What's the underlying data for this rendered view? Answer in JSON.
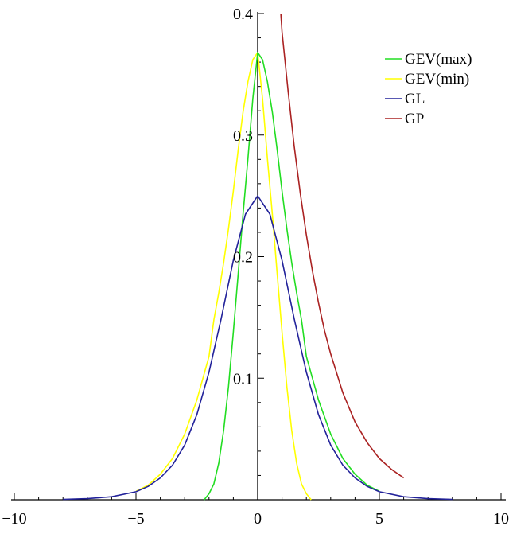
{
  "chart_data": {
    "type": "line",
    "title": "",
    "xlabel": "",
    "ylabel": "",
    "xlim": [
      -10,
      10
    ],
    "ylim": [
      0,
      0.4
    ],
    "x_ticks": [
      -10,
      -5,
      0,
      5,
      10
    ],
    "x_tick_labels": [
      "−10",
      "−5",
      "0",
      "5",
      "10"
    ],
    "y_ticks": [
      0.1,
      0.2,
      0.3,
      0.4
    ],
    "y_tick_labels": [
      "0.1",
      "0.2",
      "0.3",
      "0.4"
    ],
    "grid": false,
    "legend_position": "top-right",
    "series": [
      {
        "name": "GEV(max)",
        "color": "#22dd22",
        "points": [
          [
            -2.2,
            0.0
          ],
          [
            -2.0,
            0.005
          ],
          [
            -1.8,
            0.013
          ],
          [
            -1.6,
            0.03
          ],
          [
            -1.4,
            0.057
          ],
          [
            -1.2,
            0.093
          ],
          [
            -1.0,
            0.138
          ],
          [
            -0.8,
            0.186
          ],
          [
            -0.6,
            0.235
          ],
          [
            -0.4,
            0.281
          ],
          [
            -0.2,
            0.33
          ],
          [
            0.0,
            0.368
          ],
          [
            0.2,
            0.362
          ],
          [
            0.4,
            0.344
          ],
          [
            0.6,
            0.319
          ],
          [
            0.8,
            0.288
          ],
          [
            1.0,
            0.254
          ],
          [
            1.2,
            0.223
          ],
          [
            1.4,
            0.195
          ],
          [
            1.6,
            0.17
          ],
          [
            1.8,
            0.148
          ],
          [
            2.0,
            0.118
          ],
          [
            2.5,
            0.082
          ],
          [
            3.0,
            0.054
          ],
          [
            3.5,
            0.034
          ],
          [
            4.0,
            0.021
          ],
          [
            4.5,
            0.012
          ],
          [
            5.0,
            0.007
          ]
        ]
      },
      {
        "name": "GEV(min)",
        "color": "#ffff00",
        "points": [
          [
            -5.0,
            0.007
          ],
          [
            -4.5,
            0.012
          ],
          [
            -4.0,
            0.021
          ],
          [
            -3.5,
            0.034
          ],
          [
            -3.0,
            0.054
          ],
          [
            -2.5,
            0.082
          ],
          [
            -2.0,
            0.118
          ],
          [
            -1.8,
            0.148
          ],
          [
            -1.6,
            0.17
          ],
          [
            -1.4,
            0.195
          ],
          [
            -1.2,
            0.223
          ],
          [
            -1.0,
            0.254
          ],
          [
            -0.8,
            0.288
          ],
          [
            -0.6,
            0.319
          ],
          [
            -0.4,
            0.344
          ],
          [
            -0.2,
            0.362
          ],
          [
            0.0,
            0.368
          ],
          [
            0.2,
            0.33
          ],
          [
            0.4,
            0.281
          ],
          [
            0.6,
            0.235
          ],
          [
            0.8,
            0.186
          ],
          [
            1.0,
            0.138
          ],
          [
            1.2,
            0.093
          ],
          [
            1.4,
            0.057
          ],
          [
            1.6,
            0.03
          ],
          [
            1.8,
            0.013
          ],
          [
            2.0,
            0.005
          ],
          [
            2.2,
            0.0
          ]
        ]
      },
      {
        "name": "GL",
        "color": "#22229a",
        "points": [
          [
            -8.0,
            0.0003
          ],
          [
            -7.0,
            0.0009
          ],
          [
            -6.0,
            0.0025
          ],
          [
            -5.0,
            0.0066
          ],
          [
            -4.5,
            0.011
          ],
          [
            -4.0,
            0.018
          ],
          [
            -3.5,
            0.0285
          ],
          [
            -3.0,
            0.045
          ],
          [
            -2.5,
            0.07
          ],
          [
            -2.0,
            0.105
          ],
          [
            -1.5,
            0.149
          ],
          [
            -1.0,
            0.197
          ],
          [
            -0.5,
            0.235
          ],
          [
            0.0,
            0.25
          ],
          [
            0.5,
            0.235
          ],
          [
            1.0,
            0.197
          ],
          [
            1.5,
            0.149
          ],
          [
            2.0,
            0.105
          ],
          [
            2.5,
            0.07
          ],
          [
            3.0,
            0.045
          ],
          [
            3.5,
            0.0285
          ],
          [
            4.0,
            0.018
          ],
          [
            4.5,
            0.011
          ],
          [
            5.0,
            0.0066
          ],
          [
            6.0,
            0.0025
          ],
          [
            7.0,
            0.0009
          ],
          [
            8.0,
            0.0003
          ]
        ]
      },
      {
        "name": "GP",
        "color": "#aa2222",
        "points": [
          [
            0.95,
            0.4
          ],
          [
            1.0,
            0.385
          ],
          [
            1.25,
            0.336
          ],
          [
            1.5,
            0.291
          ],
          [
            1.75,
            0.252
          ],
          [
            2.0,
            0.218
          ],
          [
            2.25,
            0.188
          ],
          [
            2.5,
            0.162
          ],
          [
            2.75,
            0.139
          ],
          [
            3.0,
            0.12
          ],
          [
            3.5,
            0.088
          ],
          [
            4.0,
            0.064
          ],
          [
            4.5,
            0.047
          ],
          [
            5.0,
            0.034
          ],
          [
            5.5,
            0.025
          ],
          [
            6.0,
            0.018
          ]
        ]
      }
    ]
  }
}
